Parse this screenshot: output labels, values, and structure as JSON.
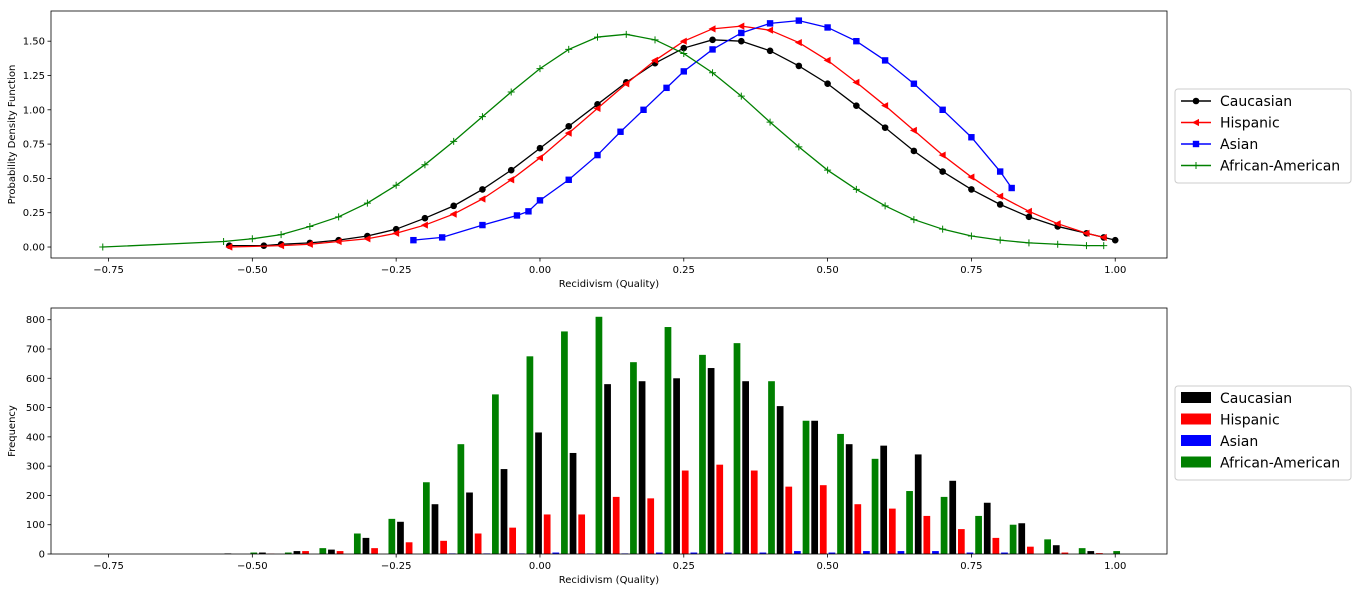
{
  "chart_data": [
    {
      "type": "line",
      "xlabel": "Recidivism (Quality)",
      "ylabel": "Probability Density Function",
      "xlim": [
        -0.85,
        1.09
      ],
      "ylim": [
        -0.08,
        1.72
      ],
      "xticks": [
        "−0.75",
        "−0.50",
        "−0.25",
        "0.00",
        "0.25",
        "0.50",
        "0.75",
        "1.00"
      ],
      "xtick_values": [
        -0.75,
        -0.5,
        -0.25,
        0.0,
        0.25,
        0.5,
        0.75,
        1.0
      ],
      "yticks": [
        "0.00",
        "0.25",
        "0.50",
        "0.75",
        "1.00",
        "1.25",
        "1.50"
      ],
      "ytick_values": [
        0.0,
        0.25,
        0.5,
        0.75,
        1.0,
        1.25,
        1.5
      ],
      "grid": false,
      "legend_position": "right",
      "series": [
        {
          "name": "Caucasian",
          "color": "#000000",
          "marker": "circle",
          "points": [
            [
              -0.54,
              0.01
            ],
            [
              -0.48,
              0.01
            ],
            [
              -0.45,
              0.02
            ],
            [
              -0.4,
              0.03
            ],
            [
              -0.35,
              0.05
            ],
            [
              -0.3,
              0.08
            ],
            [
              -0.25,
              0.13
            ],
            [
              -0.2,
              0.21
            ],
            [
              -0.15,
              0.3
            ],
            [
              -0.1,
              0.42
            ],
            [
              -0.05,
              0.56
            ],
            [
              0.0,
              0.72
            ],
            [
              0.05,
              0.88
            ],
            [
              0.1,
              1.04
            ],
            [
              0.15,
              1.2
            ],
            [
              0.2,
              1.34
            ],
            [
              0.25,
              1.45
            ],
            [
              0.3,
              1.51
            ],
            [
              0.35,
              1.5
            ],
            [
              0.4,
              1.43
            ],
            [
              0.45,
              1.32
            ],
            [
              0.5,
              1.19
            ],
            [
              0.55,
              1.03
            ],
            [
              0.6,
              0.87
            ],
            [
              0.65,
              0.7
            ],
            [
              0.7,
              0.55
            ],
            [
              0.75,
              0.42
            ],
            [
              0.8,
              0.31
            ],
            [
              0.85,
              0.22
            ],
            [
              0.9,
              0.15
            ],
            [
              0.95,
              0.1
            ],
            [
              0.98,
              0.07
            ],
            [
              1.0,
              0.05
            ]
          ]
        },
        {
          "name": "Hispanic",
          "color": "#ff0000",
          "marker": "triangle-left",
          "points": [
            [
              -0.54,
              0.0
            ],
            [
              -0.45,
              0.01
            ],
            [
              -0.4,
              0.02
            ],
            [
              -0.35,
              0.04
            ],
            [
              -0.3,
              0.06
            ],
            [
              -0.25,
              0.1
            ],
            [
              -0.2,
              0.16
            ],
            [
              -0.15,
              0.24
            ],
            [
              -0.1,
              0.35
            ],
            [
              -0.05,
              0.49
            ],
            [
              0.0,
              0.65
            ],
            [
              0.05,
              0.83
            ],
            [
              0.1,
              1.01
            ],
            [
              0.15,
              1.19
            ],
            [
              0.2,
              1.36
            ],
            [
              0.25,
              1.5
            ],
            [
              0.3,
              1.59
            ],
            [
              0.35,
              1.61
            ],
            [
              0.4,
              1.58
            ],
            [
              0.45,
              1.49
            ],
            [
              0.5,
              1.36
            ],
            [
              0.55,
              1.2
            ],
            [
              0.6,
              1.03
            ],
            [
              0.65,
              0.85
            ],
            [
              0.7,
              0.67
            ],
            [
              0.75,
              0.51
            ],
            [
              0.8,
              0.37
            ],
            [
              0.85,
              0.26
            ],
            [
              0.9,
              0.17
            ],
            [
              0.95,
              0.1
            ],
            [
              0.98,
              0.07
            ]
          ]
        },
        {
          "name": "Asian",
          "color": "#0000ff",
          "marker": "square",
          "points": [
            [
              -0.22,
              0.05
            ],
            [
              -0.17,
              0.07
            ],
            [
              -0.1,
              0.16
            ],
            [
              -0.04,
              0.23
            ],
            [
              -0.02,
              0.26
            ],
            [
              0.0,
              0.34
            ],
            [
              0.05,
              0.49
            ],
            [
              0.1,
              0.67
            ],
            [
              0.14,
              0.84
            ],
            [
              0.18,
              1.0
            ],
            [
              0.22,
              1.16
            ],
            [
              0.25,
              1.28
            ],
            [
              0.3,
              1.44
            ],
            [
              0.35,
              1.56
            ],
            [
              0.4,
              1.63
            ],
            [
              0.45,
              1.65
            ],
            [
              0.5,
              1.6
            ],
            [
              0.55,
              1.5
            ],
            [
              0.6,
              1.36
            ],
            [
              0.65,
              1.19
            ],
            [
              0.7,
              1.0
            ],
            [
              0.75,
              0.8
            ],
            [
              0.8,
              0.55
            ],
            [
              0.82,
              0.43
            ]
          ]
        },
        {
          "name": "African-American",
          "color": "#008000",
          "marker": "plus",
          "points": [
            [
              -0.76,
              0.0
            ],
            [
              -0.55,
              0.04
            ],
            [
              -0.5,
              0.06
            ],
            [
              -0.45,
              0.09
            ],
            [
              -0.4,
              0.15
            ],
            [
              -0.35,
              0.22
            ],
            [
              -0.3,
              0.32
            ],
            [
              -0.25,
              0.45
            ],
            [
              -0.2,
              0.6
            ],
            [
              -0.15,
              0.77
            ],
            [
              -0.1,
              0.95
            ],
            [
              -0.05,
              1.13
            ],
            [
              0.0,
              1.3
            ],
            [
              0.05,
              1.44
            ],
            [
              0.1,
              1.53
            ],
            [
              0.15,
              1.55
            ],
            [
              0.2,
              1.51
            ],
            [
              0.25,
              1.41
            ],
            [
              0.3,
              1.27
            ],
            [
              0.35,
              1.1
            ],
            [
              0.4,
              0.91
            ],
            [
              0.45,
              0.73
            ],
            [
              0.5,
              0.56
            ],
            [
              0.55,
              0.42
            ],
            [
              0.6,
              0.3
            ],
            [
              0.65,
              0.2
            ],
            [
              0.7,
              0.13
            ],
            [
              0.75,
              0.08
            ],
            [
              0.8,
              0.05
            ],
            [
              0.85,
              0.03
            ],
            [
              0.9,
              0.02
            ],
            [
              0.95,
              0.01
            ],
            [
              0.98,
              0.01
            ]
          ]
        }
      ]
    },
    {
      "type": "bar",
      "xlabel": "Recidivism (Quality)",
      "ylabel": "Frequency",
      "xlim": [
        -0.85,
        1.09
      ],
      "ylim": [
        0,
        840
      ],
      "xticks": [
        "−0.75",
        "−0.50",
        "−0.25",
        "0.00",
        "0.25",
        "0.50",
        "0.75",
        "1.00"
      ],
      "xtick_values": [
        -0.75,
        -0.5,
        -0.25,
        0.0,
        0.25,
        0.5,
        0.75,
        1.0
      ],
      "yticks": [
        "0",
        "100",
        "200",
        "300",
        "400",
        "500",
        "600",
        "700",
        "800"
      ],
      "ytick_values": [
        0,
        100,
        200,
        300,
        400,
        500,
        600,
        700,
        800
      ],
      "grid": false,
      "legend_position": "right",
      "bin_centers": [
        -0.52,
        -0.46,
        -0.4,
        -0.34,
        -0.28,
        -0.22,
        -0.16,
        -0.1,
        -0.04,
        0.02,
        0.08,
        0.14,
        0.2,
        0.26,
        0.32,
        0.38,
        0.44,
        0.5,
        0.56,
        0.62,
        0.68,
        0.74,
        0.8,
        0.86,
        0.92,
        0.98
      ],
      "series": [
        {
          "name": "Caucasian",
          "color": "#000000",
          "values": [
            2,
            5,
            10,
            15,
            55,
            110,
            170,
            210,
            290,
            415,
            345,
            580,
            590,
            600,
            635,
            590,
            505,
            455,
            375,
            370,
            340,
            250,
            175,
            105,
            30,
            10
          ]
        },
        {
          "name": "Hispanic",
          "color": "#ff0000",
          "values": [
            0,
            1,
            10,
            10,
            20,
            40,
            45,
            70,
            90,
            135,
            135,
            195,
            190,
            285,
            305,
            285,
            230,
            235,
            170,
            155,
            130,
            85,
            55,
            25,
            5,
            3
          ]
        },
        {
          "name": "Asian",
          "color": "#0000ff",
          "values": [
            0,
            0,
            0,
            0,
            0,
            0,
            2,
            2,
            2,
            5,
            2,
            2,
            5,
            5,
            5,
            5,
            10,
            5,
            10,
            10,
            10,
            5,
            5,
            0,
            0,
            0
          ]
        },
        {
          "name": "African-American",
          "color": "#008000",
          "values": [
            5,
            5,
            20,
            70,
            120,
            245,
            375,
            545,
            675,
            760,
            810,
            655,
            775,
            680,
            720,
            590,
            455,
            410,
            325,
            215,
            195,
            130,
            100,
            50,
            20,
            10
          ]
        }
      ]
    }
  ]
}
